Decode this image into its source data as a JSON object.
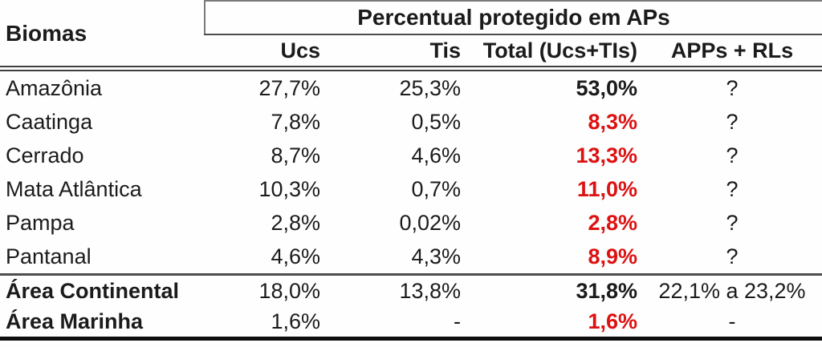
{
  "colors": {
    "highlight_red": "#dd1111",
    "text": "#1b1b1b",
    "background": "#fefefe"
  },
  "chart_data": {
    "type": "table",
    "title": "Percentual protegido em APs",
    "row_header": "Biomas",
    "columns": [
      "Ucs",
      "Tis",
      "Total (Ucs+TIs)",
      "APPs + RLs"
    ],
    "rows": [
      {
        "name": "Amazônia",
        "ucs": "27,7%",
        "tis": "25,3%",
        "total": "53,0%",
        "apps": "?"
      },
      {
        "name": "Caatinga",
        "ucs": "7,8%",
        "tis": "0,5%",
        "total": "8,3%",
        "apps": "?"
      },
      {
        "name": "Cerrado",
        "ucs": "8,7%",
        "tis": "4,6%",
        "total": "13,3%",
        "apps": "?"
      },
      {
        "name": "Mata Atlântica",
        "ucs": "10,3%",
        "tis": "0,7%",
        "total": "11,0%",
        "apps": "?"
      },
      {
        "name": "Pampa",
        "ucs": "2,8%",
        "tis": "0,02%",
        "total": "2,8%",
        "apps": "?"
      },
      {
        "name": "Pantanal",
        "ucs": "4,6%",
        "tis": "4,3%",
        "total": "8,9%",
        "apps": "?"
      },
      {
        "name": "Área Continental",
        "ucs": "18,0%",
        "tis": "13,8%",
        "total": "31,8%",
        "apps": "22,1% a 23,2%"
      },
      {
        "name": "Área Marinha",
        "ucs": "1,6%",
        "tis": "-",
        "total": "1,6%",
        "apps": "-"
      }
    ],
    "emphasis": {
      "bold_black_totals": [
        "Amazônia",
        "Área Continental"
      ],
      "bold_red_totals": [
        "Caatinga",
        "Cerrado",
        "Mata Atlântica",
        "Pampa",
        "Pantanal",
        "Área Marinha"
      ]
    }
  }
}
